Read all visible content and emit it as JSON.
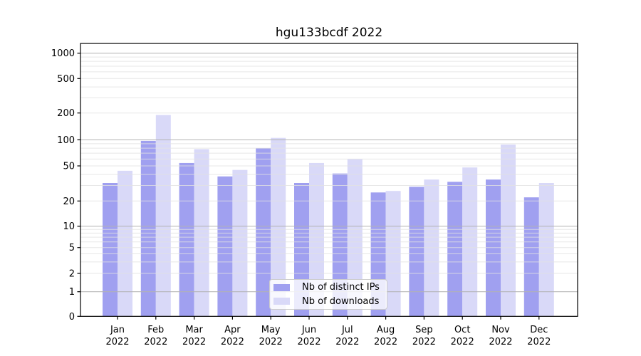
{
  "title": "hgu133bcdf 2022",
  "chart_data": {
    "type": "bar",
    "title": "hgu133bcdf 2022",
    "categories": [
      "Jan 2022",
      "Feb 2022",
      "Mar 2022",
      "Apr 2022",
      "May 2022",
      "Jun 2022",
      "Jul 2022",
      "Aug 2022",
      "Sep 2022",
      "Oct 2022",
      "Nov 2022",
      "Dec 2022"
    ],
    "series": [
      {
        "name": "Nb of distinct IPs",
        "color": "#a0a0f0",
        "values": [
          32,
          97,
          54,
          38,
          80,
          32,
          41,
          25,
          29,
          33,
          35,
          22
        ]
      },
      {
        "name": "Nb of downloads",
        "color": "#d9d9f8",
        "values": [
          44,
          190,
          78,
          45,
          105,
          54,
          60,
          26,
          35,
          48,
          88,
          32
        ]
      }
    ],
    "xlabel": "",
    "ylabel": "",
    "yscale": "log-like",
    "yticks": [
      0,
      1,
      2,
      5,
      10,
      20,
      50,
      100,
      200,
      500,
      1000
    ],
    "ylim": [
      0,
      1300
    ],
    "grid": true,
    "legend_position": "lower center",
    "colors": {
      "major_grid": "#b3b3b3",
      "minor_grid": "#e2e2e2",
      "spine": "#000000",
      "background": "#ffffff"
    }
  }
}
